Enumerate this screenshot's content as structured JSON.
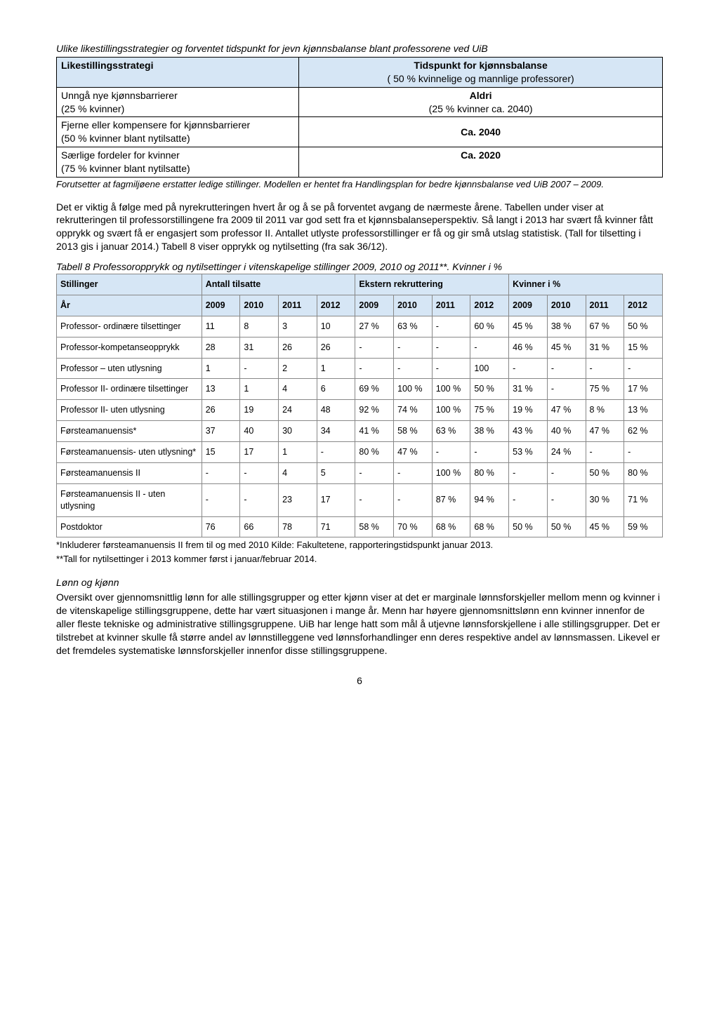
{
  "title_line": "Ulike likestillingsstrategier og forventet tidspunkt for jevn kjønnsbalanse blant professorene ved UiB",
  "t1": {
    "h1": "Likestillingsstrategi",
    "h2a": "Tidspunkt for kjønnsbalanse",
    "h2b": "( 50 % kvinnelige og mannlige professorer)",
    "r1a": "Unngå nye kjønnsbarrierer",
    "r1b": "(25 % kvinner)",
    "r1c": "Aldri",
    "r1d": "(25 % kvinner ca. 2040)",
    "r2a": "Fjerne eller kompensere for kjønnsbarrierer",
    "r2b": "(50 % kvinner blant nytilsatte)",
    "r2c": "Ca. 2040",
    "r3a": "Særlige fordeler for kvinner",
    "r3b": "(75 % kvinner blant nytilsatte)",
    "r3c": "Ca. 2020"
  },
  "t1_foot": "Forutsetter at fagmiljøene erstatter ledige stillinger. Modellen er hentet fra Handlingsplan for bedre kjønnsbalanse ved UiB 2007 – 2009.",
  "para1": "Det er viktig å følge med på nyrekrutteringen hvert år og å se på forventet avgang de nærmeste årene. Tabellen under viser at rekrutteringen til professorstillingene fra 2009 til 2011 var god sett fra et kjønnsbalanseperspektiv. Så langt i 2013 har svært få kvinner fått opprykk og svært få er engasjert som professor II. Antallet utlyste professorstillinger er få og gir små utslag statistisk. (Tall for tilsetting i 2013 gis i januar 2014.) Tabell 8 viser opprykk og nytilsetting (fra sak 36/12).",
  "t2_caption": "Tabell 8 Professoropprykk og nytilsettinger i vitenskapelige stillinger 2009, 2010 og 2011**. Kvinner i %",
  "t2": {
    "groups": [
      "Stillinger",
      "Antall tilsatte",
      "Ekstern rekruttering",
      "Kvinner i %"
    ],
    "years_label": "År",
    "years": [
      "2009",
      "2010",
      "2011",
      "2012",
      "2009",
      "2010",
      "2011",
      "2012",
      "2009",
      "2010",
      "2011",
      "2012"
    ],
    "rows": [
      {
        "label": "Professor- ordinære tilsettinger",
        "v": [
          "11",
          "8",
          "3",
          "10",
          "27 %",
          "63 %",
          "-",
          "60 %",
          "45 %",
          "38 %",
          "67 %",
          "50 %"
        ]
      },
      {
        "label": "Professor-kompetanseopprykk",
        "v": [
          "28",
          "31",
          "26",
          "26",
          "-",
          "-",
          "-",
          "-",
          "46 %",
          "45 %",
          "31 %",
          "15 %"
        ]
      },
      {
        "label": "Professor – uten utlysning",
        "v": [
          "1",
          "-",
          "2",
          "1",
          "-",
          "-",
          "-",
          "100",
          "-",
          "-",
          "-",
          "-"
        ]
      },
      {
        "label": "Professor II- ordinære tilsettinger",
        "v": [
          "13",
          "1",
          "4",
          "6",
          "69 %",
          "100 %",
          "100 %",
          "50 %",
          "31 %",
          "-",
          "75 %",
          "17 %"
        ]
      },
      {
        "label": "Professor II- uten utlysning",
        "v": [
          "26",
          "19",
          "24",
          "48",
          "92 %",
          "74 %",
          "100 %",
          "75 %",
          "19 %",
          "47 %",
          "8 %",
          "13 %"
        ]
      },
      {
        "label": "Førsteamanuensis*",
        "v": [
          "37",
          "40",
          "30",
          "34",
          "41 %",
          "58 %",
          "63 %",
          "38 %",
          "43 %",
          "40 %",
          "47 %",
          "62 %"
        ]
      },
      {
        "label": "Førsteamanuensis- uten utlysning*",
        "v": [
          "15",
          "17",
          "1",
          "-",
          "80 %",
          "47 %",
          "-",
          "-",
          "53 %",
          "24 %",
          "-",
          "-"
        ]
      },
      {
        "label": "Førsteamanuensis II",
        "v": [
          "-",
          "-",
          "4",
          "5",
          "-",
          "-",
          "100 %",
          "80 %",
          "-",
          "-",
          "50 %",
          "80 %"
        ]
      },
      {
        "label": "Førsteamanuensis II - uten utlysning",
        "v": [
          "-",
          "-",
          "23",
          "17",
          "-",
          "-",
          "87 %",
          "94 %",
          "-",
          "-",
          "30 %",
          "71 %"
        ]
      },
      {
        "label": "Postdoktor",
        "v": [
          "76",
          "66",
          "78",
          "71",
          "58 %",
          "70 %",
          "68 %",
          "68 %",
          "50 %",
          "50 %",
          "45 %",
          "59 %"
        ]
      }
    ]
  },
  "t2_foot1": "*Inkluderer førsteamanuensis II frem til og med 2010    Kilde: Fakultetene, rapporteringstidspunkt januar 2013.",
  "t2_foot2": "**Tall for nytilsettinger i 2013 kommer først i januar/februar 2014.",
  "sect_heading": "Lønn og kjønn",
  "para2": "Oversikt over gjennomsnittlig lønn for alle stillingsgrupper og etter kjønn viser at det er marginale lønnsforskjeller mellom menn og kvinner i de vitenskapelige stillingsgruppene, dette har vært situasjonen i mange år. Menn har høyere gjennomsnittslønn enn kvinner innenfor de aller fleste tekniske og administrative stillingsgruppene. UiB har lenge hatt som mål å utjevne lønnsforskjellene i alle stillingsgrupper. Det er tilstrebet at kvinner skulle få større andel av lønnstilleggene ved lønnsforhandlinger enn deres respektive andel av lønnsmassen. Likevel er det fremdeles systematiske lønnsforskjeller innenfor disse stillingsgruppene.",
  "page_num": "6"
}
